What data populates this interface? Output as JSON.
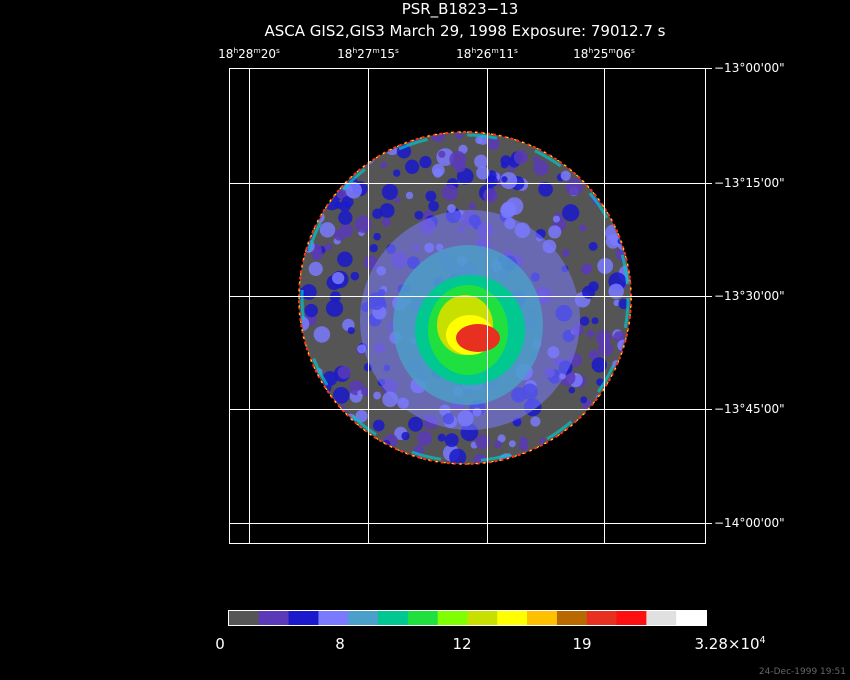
{
  "header": {
    "title": "PSR_B1823−13",
    "subtitle": "ASCA GIS2,GIS3 March 29, 1998 Exposure: 79012.7 s"
  },
  "ra_labels": [
    [
      "18",
      "h",
      "28",
      "m",
      "20",
      "s"
    ],
    [
      "18",
      "h",
      "27",
      "m",
      "15",
      "s"
    ],
    [
      "18",
      "h",
      "26",
      "m",
      "11",
      "s"
    ],
    [
      "18",
      "h",
      "25",
      "m",
      "06",
      "s"
    ]
  ],
  "dec_labels": [
    "−13°00'00\"",
    "−13°15'00\"",
    "−13°30'00\"",
    "−13°45'00\"",
    "−14°00'00\""
  ],
  "colorbar": {
    "colors": [
      "#555555",
      "#5a3ab8",
      "#1a1acc",
      "#7a7aff",
      "#4aa0c8",
      "#00c890",
      "#20e040",
      "#80ff00",
      "#c8e000",
      "#ffff00",
      "#ffc000",
      "#b86a00",
      "#e83020",
      "#ff1010",
      "#e0e0e0",
      "#ffffff"
    ],
    "labels": [
      [
        "0"
      ],
      [
        "8"
      ],
      [
        "12"
      ],
      [
        "19"
      ],
      [
        "3.28×10",
        "4"
      ]
    ]
  },
  "timestamp": "24-Dec-1999 19:51"
}
